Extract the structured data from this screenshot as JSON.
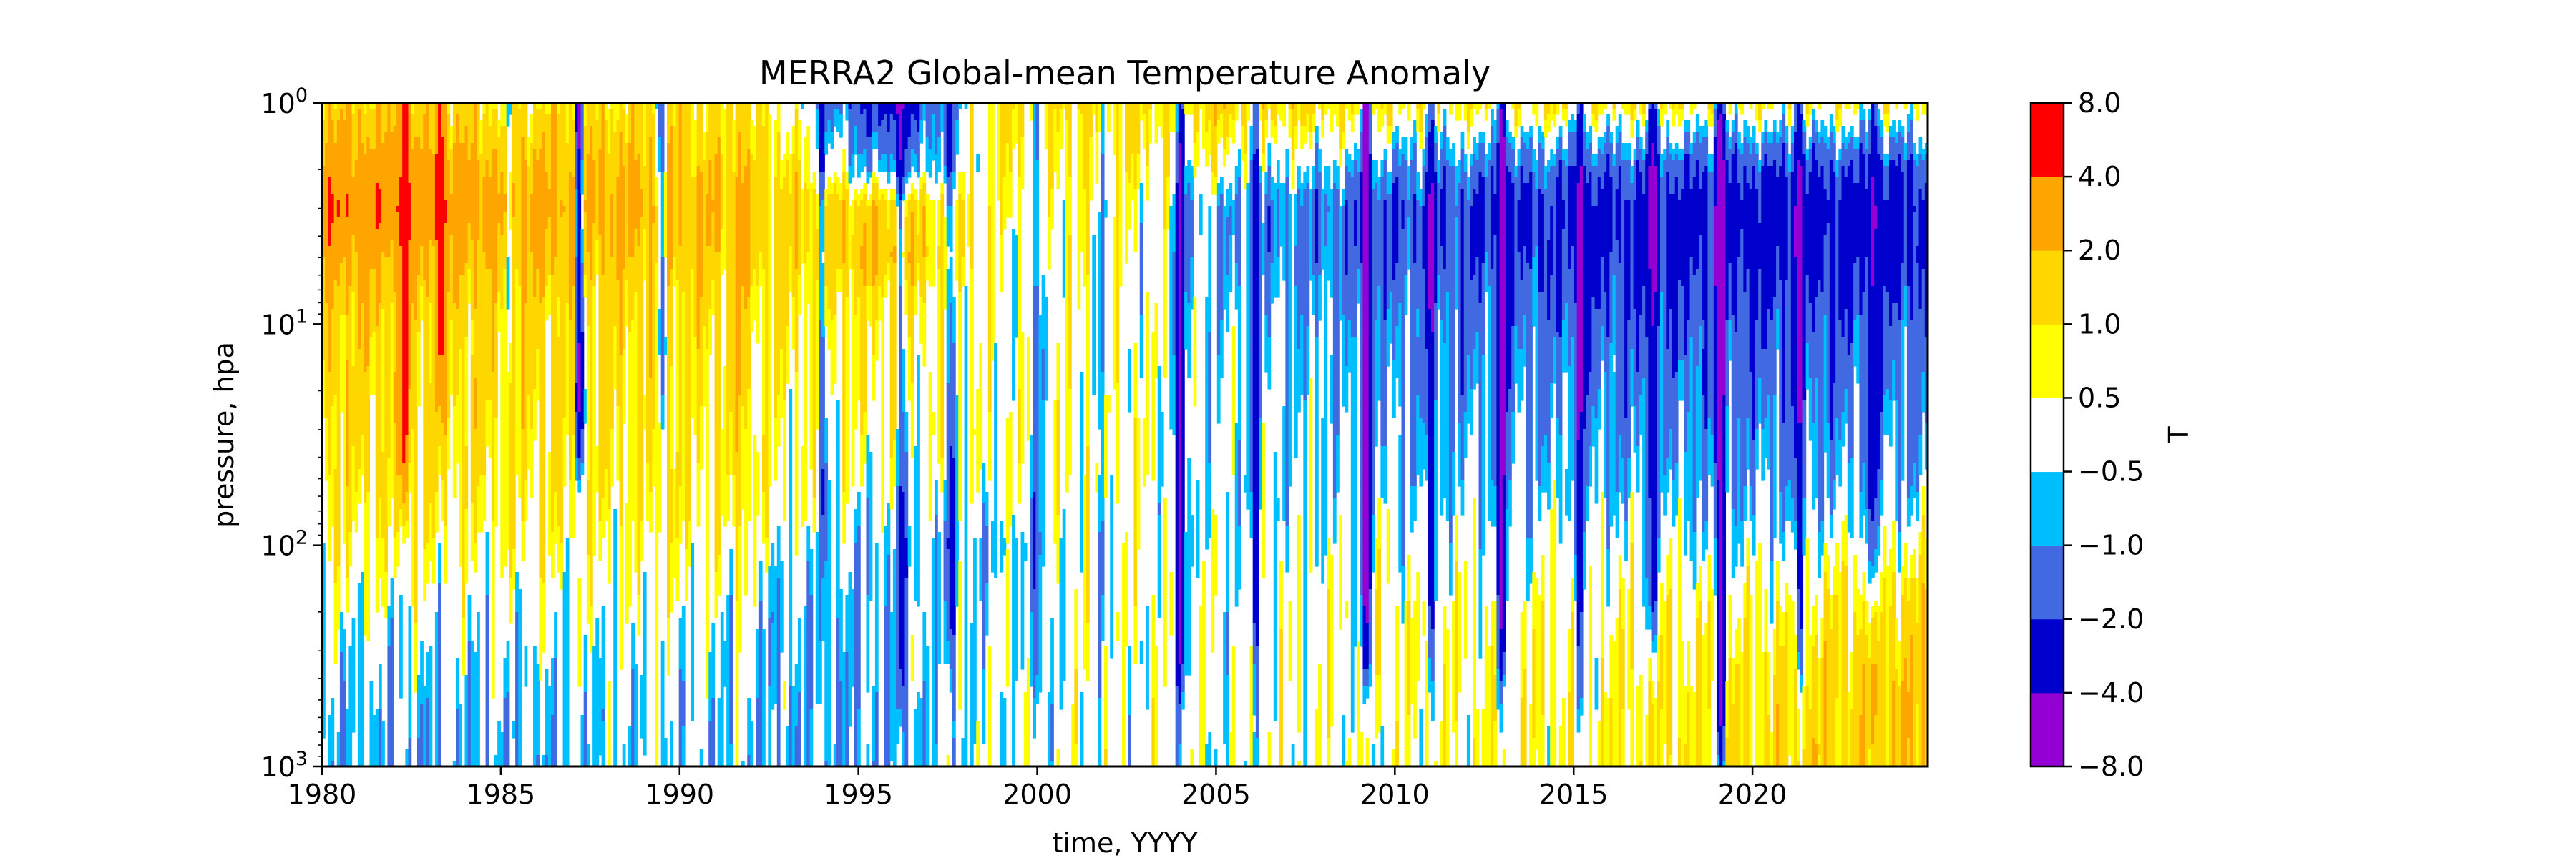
{
  "chart_data": {
    "type": "heatmap",
    "subtype": "filled-contour",
    "title": "MERRA2 Global-mean Temperature Anomaly",
    "xlabel": "time, YYYY",
    "ylabel": "pressure, hpa",
    "colorbar_label": "T",
    "x_range": [
      1980.0,
      2024.9
    ],
    "x_ticks": [
      1980,
      1985,
      1990,
      1995,
      2000,
      2005,
      2010,
      2015,
      2020
    ],
    "x_tick_labels": [
      "1980",
      "1985",
      "1990",
      "1995",
      "2000",
      "2005",
      "2010",
      "2015",
      "2020"
    ],
    "y_scale": "log",
    "y_inverted": true,
    "y_range": [
      1,
      1000
    ],
    "y_ticks": [
      1,
      10,
      100,
      1000
    ],
    "y_tick_labels": [
      {
        "base": "10",
        "exp": "0"
      },
      {
        "base": "10",
        "exp": "1"
      },
      {
        "base": "10",
        "exp": "2"
      },
      {
        "base": "10",
        "exp": "3"
      }
    ],
    "levels": [
      -8.0,
      -4.0,
      -2.0,
      -1.0,
      -0.5,
      0.5,
      1.0,
      2.0,
      4.0,
      8.0
    ],
    "level_labels": [
      "−8.0",
      "−4.0",
      "−2.0",
      "−1.0",
      "−0.5",
      "0.5",
      "1.0",
      "2.0",
      "4.0",
      "8.0"
    ],
    "level_colors": [
      "#9400d3",
      "#0000cd",
      "#4169e1",
      "#00bfff",
      "#ffffff",
      "#ffff00",
      "#ffd700",
      "#ffa500",
      "#ff0000"
    ],
    "grid": false,
    "pressure_levels": [
      1,
      2,
      3,
      5,
      7,
      10,
      20,
      30,
      50,
      70,
      100,
      150,
      200,
      300,
      500,
      700,
      1000
    ],
    "regime_anchors": [
      {
        "year": 1980,
        "anomaly_by_level": [
          1.5,
          3.0,
          4.0,
          2.5,
          2.0,
          1.6,
          1.4,
          1.2,
          1.0,
          0.8,
          0.5,
          0.2,
          0.0,
          -0.3,
          -0.5,
          -0.6,
          -0.6
        ]
      },
      {
        "year": 1985,
        "anomaly_by_level": [
          1.0,
          2.2,
          2.6,
          2.0,
          1.6,
          1.3,
          1.1,
          1.0,
          0.8,
          0.6,
          0.4,
          0.1,
          -0.1,
          -0.3,
          -0.5,
          -0.6,
          -0.6
        ]
      },
      {
        "year": 1990,
        "anomaly_by_level": [
          1.2,
          1.8,
          2.2,
          1.8,
          1.4,
          1.2,
          1.0,
          0.9,
          0.8,
          0.7,
          0.5,
          0.3,
          0.1,
          -0.1,
          -0.2,
          -0.3,
          -0.3
        ]
      },
      {
        "year": 1993,
        "anomaly_by_level": [
          0.3,
          1.0,
          1.4,
          1.2,
          1.0,
          0.8,
          0.6,
          0.5,
          0.4,
          0.2,
          -0.1,
          -0.4,
          -0.6,
          -0.7,
          -0.7,
          -0.7,
          -0.7
        ]
      },
      {
        "year": 1996,
        "anomaly_by_level": [
          -3.0,
          -1.0,
          1.5,
          2.0,
          1.2,
          0.8,
          0.5,
          0.3,
          0.0,
          -0.3,
          -0.6,
          -0.6,
          -0.6,
          -0.6,
          -0.6,
          -0.6,
          -0.6
        ]
      },
      {
        "year": 1999,
        "anomaly_by_level": [
          1.0,
          0.6,
          0.3,
          0.2,
          0.1,
          0.0,
          0.1,
          0.2,
          0.1,
          -0.2,
          -0.6,
          -0.4,
          -0.2,
          -0.1,
          0.0,
          0.0,
          0.0
        ]
      },
      {
        "year": 2002,
        "anomaly_by_level": [
          1.0,
          0.7,
          0.5,
          0.4,
          0.3,
          0.2,
          0.3,
          0.4,
          0.5,
          0.4,
          0.3,
          0.2,
          0.2,
          0.1,
          0.0,
          0.0,
          0.0
        ]
      },
      {
        "year": 2005,
        "anomaly_by_level": [
          1.5,
          0.2,
          -0.6,
          -0.7,
          -0.5,
          -0.3,
          -0.2,
          -0.2,
          -0.2,
          -0.2,
          -0.1,
          0.0,
          0.0,
          0.0,
          0.0,
          0.0,
          0.0
        ]
      },
      {
        "year": 2010,
        "anomaly_by_level": [
          0.8,
          -1.0,
          -1.8,
          -1.6,
          -1.3,
          -1.0,
          -0.8,
          -0.6,
          -0.4,
          -0.2,
          0.0,
          0.2,
          0.4,
          0.4,
          0.3,
          0.2,
          0.2
        ]
      },
      {
        "year": 2015,
        "anomaly_by_level": [
          0.8,
          -1.5,
          -2.2,
          -2.0,
          -1.8,
          -1.5,
          -1.1,
          -0.8,
          -0.6,
          -0.3,
          0.0,
          0.2,
          0.4,
          0.5,
          0.6,
          0.6,
          0.6
        ]
      },
      {
        "year": 2020,
        "anomaly_by_level": [
          0.6,
          -2.0,
          -2.8,
          -2.6,
          -2.3,
          -1.8,
          -1.4,
          -1.1,
          -0.8,
          -0.5,
          -0.2,
          0.2,
          0.5,
          0.8,
          1.0,
          1.1,
          1.1
        ]
      },
      {
        "year": 2024.9,
        "anomaly_by_level": [
          0.5,
          -1.8,
          -2.6,
          -2.4,
          -2.0,
          -1.6,
          -1.2,
          -0.9,
          -0.6,
          -0.2,
          0.4,
          0.9,
          1.3,
          1.6,
          1.8,
          1.8,
          1.8
        ]
      }
    ],
    "vertical_streaks": [
      {
        "year": 1982.3,
        "delta": 4.0,
        "bottom": 30
      },
      {
        "year": 1983.3,
        "delta": 3.5,
        "bottom": 10
      },
      {
        "year": 1985.2,
        "delta": -2.5,
        "bottom": 5
      },
      {
        "year": 1987.2,
        "delta": -5.0,
        "bottom": 20
      },
      {
        "year": 1989.5,
        "delta": -3.0,
        "bottom": 10
      },
      {
        "year": 1991.7,
        "delta": 1.5,
        "bottom": 200
      },
      {
        "year": 1994.0,
        "delta": -2.0,
        "bottom": 50
      },
      {
        "year": 1996.2,
        "delta": -2.0,
        "bottom": 300
      },
      {
        "year": 1997.6,
        "delta": -2.0,
        "bottom": 200
      },
      {
        "year": 2000.0,
        "delta": -2.0,
        "bottom": 300
      },
      {
        "year": 2001.8,
        "delta": -1.5,
        "bottom": 100
      },
      {
        "year": 2004.0,
        "delta": -5.0,
        "bottom": 200
      },
      {
        "year": 2006.1,
        "delta": -3.0,
        "bottom": 150
      },
      {
        "year": 2009.2,
        "delta": -5.0,
        "bottom": 200
      },
      {
        "year": 2011.0,
        "delta": -2.5,
        "bottom": 150
      },
      {
        "year": 2013.0,
        "delta": -5.0,
        "bottom": 200
      },
      {
        "year": 2015.2,
        "delta": -3.0,
        "bottom": 300
      },
      {
        "year": 2017.2,
        "delta": -3.0,
        "bottom": 150
      },
      {
        "year": 2019.1,
        "delta": -5.0,
        "bottom": 500
      },
      {
        "year": 2021.3,
        "delta": -3.0,
        "bottom": 200
      },
      {
        "year": 2023.4,
        "delta": -2.5,
        "bottom": 100
      }
    ]
  }
}
